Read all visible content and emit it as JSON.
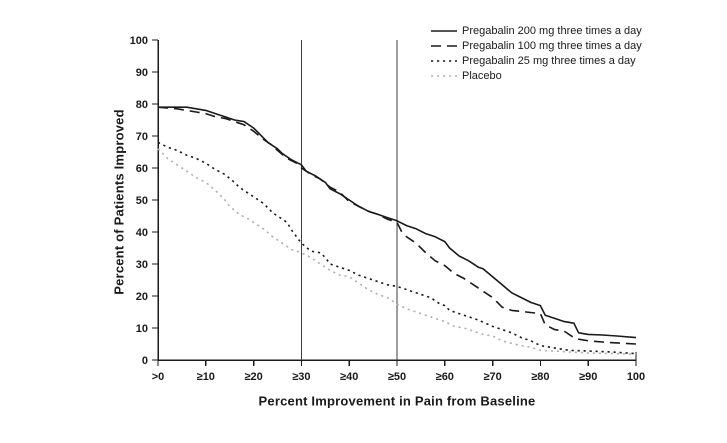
{
  "chart_data": {
    "type": "line",
    "title": "",
    "xlabel": "Percent Improvement in Pain from Baseline",
    "ylabel": "Percent of Patients Improved",
    "xlim": [
      0,
      100
    ],
    "ylim": [
      0,
      100
    ],
    "grid": false,
    "legend_position": "top-right",
    "x_tick_values": [
      0,
      10,
      20,
      30,
      40,
      50,
      60,
      70,
      80,
      90,
      100
    ],
    "x_tick_labels": [
      ">0",
      "≥10",
      "≥20",
      "≥30",
      "≥40",
      "≥50",
      "≥60",
      "≥70",
      "≥80",
      "≥90",
      "100"
    ],
    "y_tick_values": [
      0,
      10,
      20,
      30,
      40,
      50,
      60,
      70,
      80,
      90,
      100
    ],
    "reference_lines_x": [
      30,
      50
    ],
    "axis_color": "#1a1a1a",
    "series": [
      {
        "label": "Pregabalin 200 mg three times a day",
        "style": "solid",
        "color": "#1a1a1a",
        "points": [
          [
            0,
            79
          ],
          [
            3,
            79
          ],
          [
            6,
            79
          ],
          [
            8,
            78.5
          ],
          [
            10,
            78
          ],
          [
            12,
            77
          ],
          [
            14,
            76
          ],
          [
            16,
            75
          ],
          [
            18,
            74.5
          ],
          [
            20,
            72.5
          ],
          [
            21,
            71
          ],
          [
            23,
            68
          ],
          [
            25,
            66
          ],
          [
            26,
            64.5
          ],
          [
            28,
            62.5
          ],
          [
            30,
            61
          ],
          [
            31,
            59
          ],
          [
            33,
            57.5
          ],
          [
            35,
            55.5
          ],
          [
            36,
            53.5
          ],
          [
            38,
            52
          ],
          [
            40,
            50
          ],
          [
            42,
            48
          ],
          [
            44,
            46.5
          ],
          [
            46,
            45.5
          ],
          [
            48,
            44.5
          ],
          [
            50,
            43.5
          ],
          [
            52,
            42
          ],
          [
            54,
            41
          ],
          [
            56,
            39.5
          ],
          [
            58,
            38.5
          ],
          [
            60,
            37
          ],
          [
            61,
            35
          ],
          [
            63,
            32.5
          ],
          [
            65,
            31
          ],
          [
            67,
            29
          ],
          [
            68,
            28.5
          ],
          [
            70,
            26
          ],
          [
            72,
            23.5
          ],
          [
            74,
            21
          ],
          [
            76,
            19.5
          ],
          [
            78,
            18
          ],
          [
            80,
            17
          ],
          [
            81,
            14
          ],
          [
            83,
            13
          ],
          [
            85,
            12
          ],
          [
            87,
            11.5
          ],
          [
            88,
            8.5
          ],
          [
            90,
            8
          ],
          [
            93,
            7.8
          ],
          [
            96,
            7.5
          ],
          [
            100,
            7
          ]
        ]
      },
      {
        "label": "Pregabalin 100 mg three times a day",
        "style": "dashed",
        "color": "#1a1a1a",
        "points": [
          [
            0,
            79
          ],
          [
            4,
            78.5
          ],
          [
            8,
            77.5
          ],
          [
            10,
            77
          ],
          [
            12,
            76
          ],
          [
            14,
            75.5
          ],
          [
            16,
            74.5
          ],
          [
            18,
            73.5
          ],
          [
            20,
            71.5
          ],
          [
            22,
            69
          ],
          [
            24,
            67
          ],
          [
            25,
            65.5
          ],
          [
            27,
            63
          ],
          [
            29,
            61.5
          ],
          [
            30,
            60
          ],
          [
            32,
            58
          ],
          [
            34,
            56.5
          ],
          [
            36,
            54
          ],
          [
            38,
            52.5
          ],
          [
            40,
            49.5
          ],
          [
            42,
            48
          ],
          [
            44,
            46.5
          ],
          [
            46,
            45.5
          ],
          [
            48,
            44
          ],
          [
            50,
            43
          ],
          [
            51,
            40
          ],
          [
            52,
            38.5
          ],
          [
            54,
            36.5
          ],
          [
            56,
            33.5
          ],
          [
            58,
            31
          ],
          [
            60,
            29.5
          ],
          [
            62,
            27
          ],
          [
            64,
            25.5
          ],
          [
            66,
            23.5
          ],
          [
            68,
            21.5
          ],
          [
            70,
            19.5
          ],
          [
            72,
            16.5
          ],
          [
            74,
            15.5
          ],
          [
            77,
            15
          ],
          [
            80,
            14.5
          ],
          [
            81,
            11
          ],
          [
            83,
            9.5
          ],
          [
            85,
            9
          ],
          [
            87,
            7
          ],
          [
            88,
            6.5
          ],
          [
            90,
            6
          ],
          [
            94,
            5.5
          ],
          [
            100,
            5
          ]
        ]
      },
      {
        "label": "Pregabalin 25 mg three times a day",
        "style": "dotted",
        "color": "#1a1a1a",
        "points": [
          [
            0,
            68
          ],
          [
            2,
            66.5
          ],
          [
            4,
            65.5
          ],
          [
            6,
            64
          ],
          [
            8,
            63
          ],
          [
            10,
            61.5
          ],
          [
            12,
            59.5
          ],
          [
            14,
            58
          ],
          [
            16,
            55.5
          ],
          [
            17,
            54
          ],
          [
            19,
            52
          ],
          [
            20,
            51
          ],
          [
            22,
            49
          ],
          [
            24,
            46
          ],
          [
            25,
            45
          ],
          [
            27,
            43
          ],
          [
            28,
            40.5
          ],
          [
            30,
            36.5
          ],
          [
            32,
            34
          ],
          [
            34,
            33.5
          ],
          [
            35,
            32
          ],
          [
            36,
            30
          ],
          [
            38,
            29
          ],
          [
            40,
            28
          ],
          [
            42,
            26.5
          ],
          [
            44,
            25.5
          ],
          [
            46,
            24.5
          ],
          [
            48,
            23.5
          ],
          [
            50,
            23
          ],
          [
            52,
            22
          ],
          [
            54,
            21
          ],
          [
            57,
            19.5
          ],
          [
            59,
            17.5
          ],
          [
            60,
            17
          ],
          [
            61,
            15.5
          ],
          [
            63,
            14.5
          ],
          [
            65,
            13.5
          ],
          [
            67,
            12.5
          ],
          [
            70,
            10.5
          ],
          [
            72,
            9.5
          ],
          [
            74,
            8.5
          ],
          [
            76,
            7
          ],
          [
            78,
            6
          ],
          [
            80,
            4.5
          ],
          [
            82,
            4
          ],
          [
            84,
            3.5
          ],
          [
            86,
            3
          ],
          [
            90,
            2.8
          ],
          [
            95,
            2.5
          ],
          [
            100,
            2
          ]
        ]
      },
      {
        "label": "Placebo",
        "style": "dotted",
        "color": "#b3b3b3",
        "points": [
          [
            0,
            66
          ],
          [
            2,
            63
          ],
          [
            4,
            61
          ],
          [
            6,
            59
          ],
          [
            8,
            57
          ],
          [
            10,
            55.5
          ],
          [
            12,
            53
          ],
          [
            14,
            50
          ],
          [
            15,
            48
          ],
          [
            17,
            45.5
          ],
          [
            19,
            44
          ],
          [
            20,
            43
          ],
          [
            22,
            41
          ],
          [
            24,
            38.5
          ],
          [
            25,
            37.5
          ],
          [
            27,
            35.5
          ],
          [
            28,
            34.5
          ],
          [
            30,
            33.5
          ],
          [
            32,
            32
          ],
          [
            34,
            30
          ],
          [
            36,
            28
          ],
          [
            38,
            26.5
          ],
          [
            40,
            26
          ],
          [
            42,
            24
          ],
          [
            44,
            22
          ],
          [
            46,
            20.5
          ],
          [
            48,
            19.5
          ],
          [
            50,
            17.5
          ],
          [
            52,
            16
          ],
          [
            54,
            15
          ],
          [
            56,
            14
          ],
          [
            58,
            13
          ],
          [
            60,
            12
          ],
          [
            62,
            10.5
          ],
          [
            64,
            10
          ],
          [
            66,
            9
          ],
          [
            68,
            8
          ],
          [
            70,
            7.5
          ],
          [
            72,
            6
          ],
          [
            74,
            5.2
          ],
          [
            76,
            4.5
          ],
          [
            78,
            4
          ],
          [
            80,
            3
          ],
          [
            83,
            2.8
          ],
          [
            86,
            2.5
          ],
          [
            90,
            2.2
          ],
          [
            95,
            2
          ],
          [
            100,
            1.8
          ]
        ]
      }
    ]
  }
}
